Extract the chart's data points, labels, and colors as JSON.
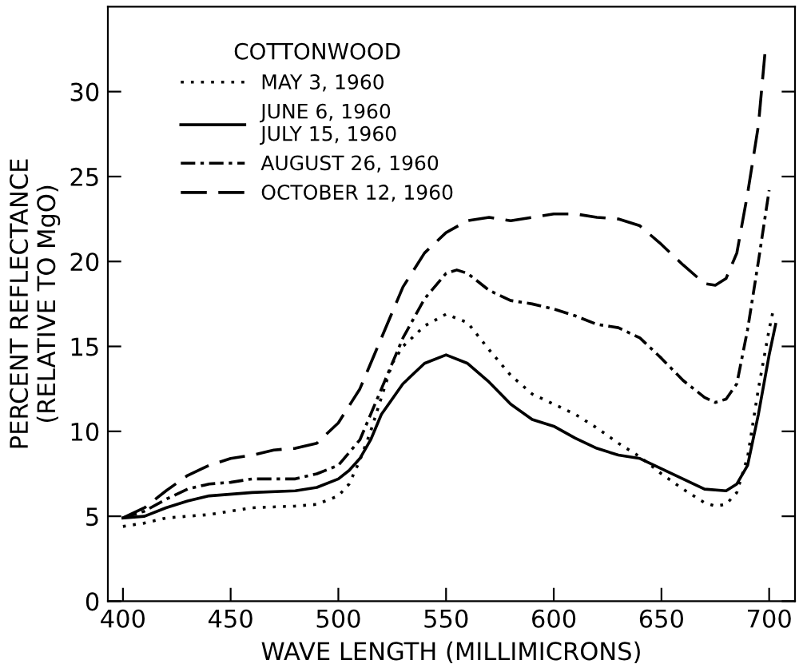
{
  "chart_data": {
    "type": "line",
    "xlabel": "WAVE LENGTH (MILLIMICRONS)",
    "ylabel": "PERCENT REFLECTANCE\n(RELATIVE TO MgO)",
    "legend_title": "COTTONWOOD",
    "legend": "top left",
    "grid": false,
    "xlim": [
      393,
      712
    ],
    "ylim": [
      0,
      35
    ],
    "xticks": [
      400,
      450,
      500,
      550,
      600,
      650,
      700
    ],
    "yticks": [
      0,
      5,
      10,
      15,
      20,
      25,
      30
    ],
    "series": [
      {
        "name": "MAY 3, 1960",
        "color": "#000000",
        "line_style": "dotted",
        "x": [
          400,
          410,
          420,
          440,
          460,
          480,
          490,
          500,
          505,
          510,
          515,
          520,
          525,
          530,
          540,
          550,
          560,
          570,
          580,
          590,
          600,
          610,
          620,
          630,
          640,
          650,
          660,
          670,
          675,
          680,
          685,
          690,
          695,
          700,
          702
        ],
        "values": [
          4.4,
          4.6,
          4.9,
          5.1,
          5.5,
          5.6,
          5.7,
          6.2,
          6.9,
          8.3,
          10,
          12,
          14,
          15.0,
          16.2,
          16.9,
          16.4,
          14.8,
          13.3,
          12.2,
          11.6,
          11.0,
          10.2,
          9.3,
          8.5,
          7.5,
          6.6,
          5.8,
          5.6,
          5.7,
          6.4,
          8.5,
          12.5,
          16.0,
          17.2
        ]
      },
      {
        "name": "JUNE 6, 1960\nJULY 15, 1960",
        "color": "#000000",
        "line_style": "solid",
        "x": [
          400,
          410,
          420,
          430,
          440,
          460,
          480,
          490,
          500,
          505,
          510,
          515,
          520,
          530,
          540,
          550,
          560,
          570,
          580,
          590,
          600,
          610,
          620,
          630,
          640,
          650,
          660,
          670,
          680,
          685,
          690,
          695,
          700,
          703
        ],
        "values": [
          4.9,
          5.0,
          5.5,
          5.9,
          6.2,
          6.4,
          6.5,
          6.7,
          7.2,
          7.7,
          8.4,
          9.5,
          11,
          12.8,
          14.0,
          14.5,
          14.0,
          12.9,
          11.6,
          10.7,
          10.3,
          9.6,
          9.0,
          8.6,
          8.4,
          7.8,
          7.2,
          6.6,
          6.5,
          6.9,
          8.0,
          11,
          14.5,
          16.3
        ]
      },
      {
        "name": "AUGUST 26, 1960",
        "color": "#000000",
        "line_style": "dashdot",
        "x": [
          400,
          410,
          420,
          430,
          440,
          450,
          460,
          470,
          480,
          490,
          500,
          510,
          520,
          530,
          540,
          550,
          555,
          560,
          570,
          580,
          590,
          600,
          610,
          620,
          630,
          640,
          650,
          660,
          670,
          675,
          680,
          685,
          690,
          695,
          700
        ],
        "values": [
          4.9,
          5.3,
          6.0,
          6.6,
          6.9,
          7.0,
          7.2,
          7.2,
          7.2,
          7.5,
          8.0,
          9.5,
          12.5,
          15.5,
          17.8,
          19.3,
          19.5,
          19.3,
          18.3,
          17.7,
          17.5,
          17.2,
          16.8,
          16.3,
          16.1,
          15.5,
          14.3,
          13,
          12,
          11.7,
          11.9,
          12.8,
          16,
          20,
          24.2
        ]
      },
      {
        "name": "OCTOBER 12, 1960",
        "color": "#000000",
        "line_style": "dashed",
        "x": [
          400,
          410,
          420,
          430,
          440,
          450,
          460,
          470,
          480,
          490,
          500,
          510,
          520,
          530,
          540,
          550,
          560,
          570,
          580,
          590,
          600,
          610,
          620,
          630,
          640,
          650,
          660,
          670,
          675,
          680,
          685,
          690,
          695,
          698
        ],
        "values": [
          4.9,
          5.5,
          6.5,
          7.4,
          8.0,
          8.4,
          8.6,
          8.9,
          9.0,
          9.3,
          10.5,
          12.5,
          15.5,
          18.5,
          20.5,
          21.7,
          22.4,
          22.6,
          22.4,
          22.6,
          22.8,
          22.8,
          22.6,
          22.5,
          22.1,
          21.0,
          19.8,
          18.7,
          18.6,
          19,
          20.5,
          24,
          28,
          32.2
        ]
      }
    ]
  }
}
